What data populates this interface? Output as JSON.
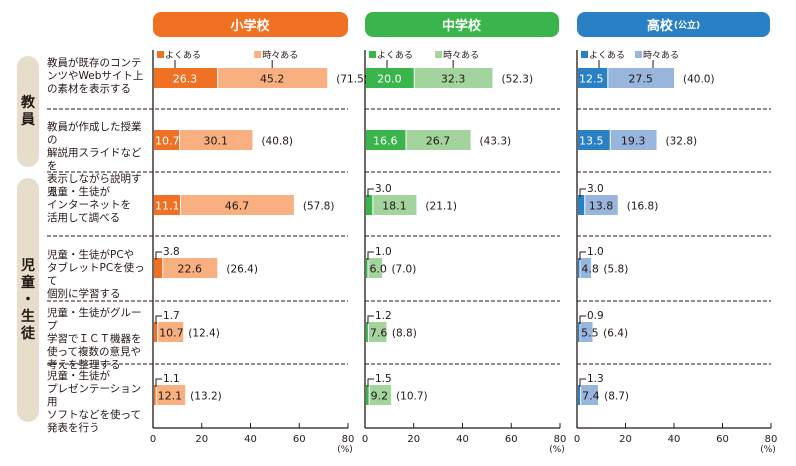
{
  "groups": [
    {
      "label": "教員",
      "chars": [
        "教",
        "員"
      ]
    },
    {
      "label": "児童・生徒",
      "chars": [
        "児",
        "童",
        "・",
        "生",
        "徒"
      ]
    }
  ],
  "rows": [
    {
      "label_lines": [
        "教員が既存のコンテ",
        "ンツやWebサイト上",
        "の素材を表示する"
      ]
    },
    {
      "label_lines": [
        "教員が作成した授業の",
        "解説用スライドなどを",
        "表示しながら説明する"
      ]
    },
    {
      "label_lines": [
        "児童・生徒が",
        "インターネットを",
        "活用して調べる"
      ]
    },
    {
      "label_lines": [
        "児童・生徒がPCや",
        "タブレットPCを使って",
        "個別に学習する"
      ]
    },
    {
      "label_lines": [
        "児童・生徒がグループ",
        "学習でＩＣＴ機器を",
        "使って複数の意見や",
        "考えを整理する"
      ]
    },
    {
      "label_lines": [
        "児童・生徒が",
        "プレゼンテーション用",
        "ソフトなどを使って",
        "発表を行う"
      ]
    }
  ],
  "chart_data": [
    {
      "type": "bar",
      "stacked": true,
      "orientation": "horizontal",
      "title": "小学校",
      "title_suffix": "",
      "colors": {
        "header": "#F07124",
        "often": "#F07124",
        "sometimes": "#F9B080"
      },
      "legend": [
        "よくある",
        "時々ある"
      ],
      "categories": [
        "教員が既存のコンテンツやWebサイト上の素材を表示する",
        "教員が作成した授業の解説用スライドなどを表示しながら説明する",
        "児童・生徒がインターネットを活用して調べる",
        "児童・生徒がPCやタブレットPCを使って個別に学習する",
        "児童・生徒がグループ学習でＩＣＴ機器を使って複数の意見や考えを整理する",
        "児童・生徒がプレゼンテーション用ソフトなどを使って発表を行う"
      ],
      "series": [
        {
          "name": "よくある",
          "values": [
            26.3,
            10.7,
            11.1,
            3.8,
            1.7,
            1.1
          ]
        },
        {
          "name": "時々ある",
          "values": [
            45.2,
            30.1,
            46.7,
            22.6,
            10.7,
            12.1
          ]
        }
      ],
      "totals": [
        "(71.5)",
        "(40.8)",
        "(57.8)",
        "(26.4)",
        "(12.4)",
        "(13.2)"
      ],
      "xticks": [
        "0",
        "20",
        "40",
        "60",
        "80"
      ],
      "xlim": [
        0,
        80
      ],
      "xunit": "(%)"
    },
    {
      "type": "bar",
      "stacked": true,
      "orientation": "horizontal",
      "title": "中学校",
      "title_suffix": "",
      "colors": {
        "header": "#3AB54B",
        "often": "#3AB54B",
        "sometimes": "#A4D49D"
      },
      "legend": [
        "よくある",
        "時々ある"
      ],
      "categories": [
        "教員が既存のコンテンツやWebサイト上の素材を表示する",
        "教員が作成した授業の解説用スライドなどを表示しながら説明する",
        "児童・生徒がインターネットを活用して調べる",
        "児童・生徒がPCやタブレットPCを使って個別に学習する",
        "児童・生徒がグループ学習でＩＣＴ機器を使って複数の意見や考えを整理する",
        "児童・生徒がプレゼンテーション用ソフトなどを使って発表を行う"
      ],
      "series": [
        {
          "name": "よくある",
          "values": [
            20.0,
            16.6,
            3.0,
            1.0,
            1.2,
            1.5
          ]
        },
        {
          "name": "時々ある",
          "values": [
            32.3,
            26.7,
            18.1,
            6.0,
            7.6,
            9.2
          ]
        }
      ],
      "totals": [
        "(52.3)",
        "(43.3)",
        "(21.1)",
        "(7.0)",
        "(8.8)",
        "(10.7)"
      ],
      "xticks": [
        "0",
        "20",
        "40",
        "60",
        "80"
      ],
      "xlim": [
        0,
        80
      ],
      "xunit": "(%)"
    },
    {
      "type": "bar",
      "stacked": true,
      "orientation": "horizontal",
      "title": "高校",
      "title_suffix": "(公立)",
      "colors": {
        "header": "#2980C5",
        "often": "#2980C5",
        "sometimes": "#97B5DD"
      },
      "legend": [
        "よくある",
        "時々ある"
      ],
      "categories": [
        "教員が既存のコンテンツやWebサイト上の素材を表示する",
        "教員が作成した授業の解説用スライドなどを表示しながら説明する",
        "児童・生徒がインターネットを活用して調べる",
        "児童・生徒がPCやタブレットPCを使って個別に学習する",
        "児童・生徒がグループ学習でＩＣＴ機器を使って複数の意見や考えを整理する",
        "児童・生徒がプレゼンテーション用ソフトなどを使って発表を行う"
      ],
      "series": [
        {
          "name": "よくある",
          "values": [
            12.5,
            13.5,
            3.0,
            1.0,
            0.9,
            1.3
          ]
        },
        {
          "name": "時々ある",
          "values": [
            27.5,
            19.3,
            13.8,
            4.8,
            5.5,
            7.4
          ]
        }
      ],
      "totals": [
        "(40.0)",
        "(32.8)",
        "(16.8)",
        "(5.8)",
        "(6.4)",
        "(8.7)"
      ],
      "xticks": [
        "0",
        "20",
        "40",
        "60",
        "80"
      ],
      "xlim": [
        0,
        80
      ],
      "xunit": "(%)"
    }
  ]
}
